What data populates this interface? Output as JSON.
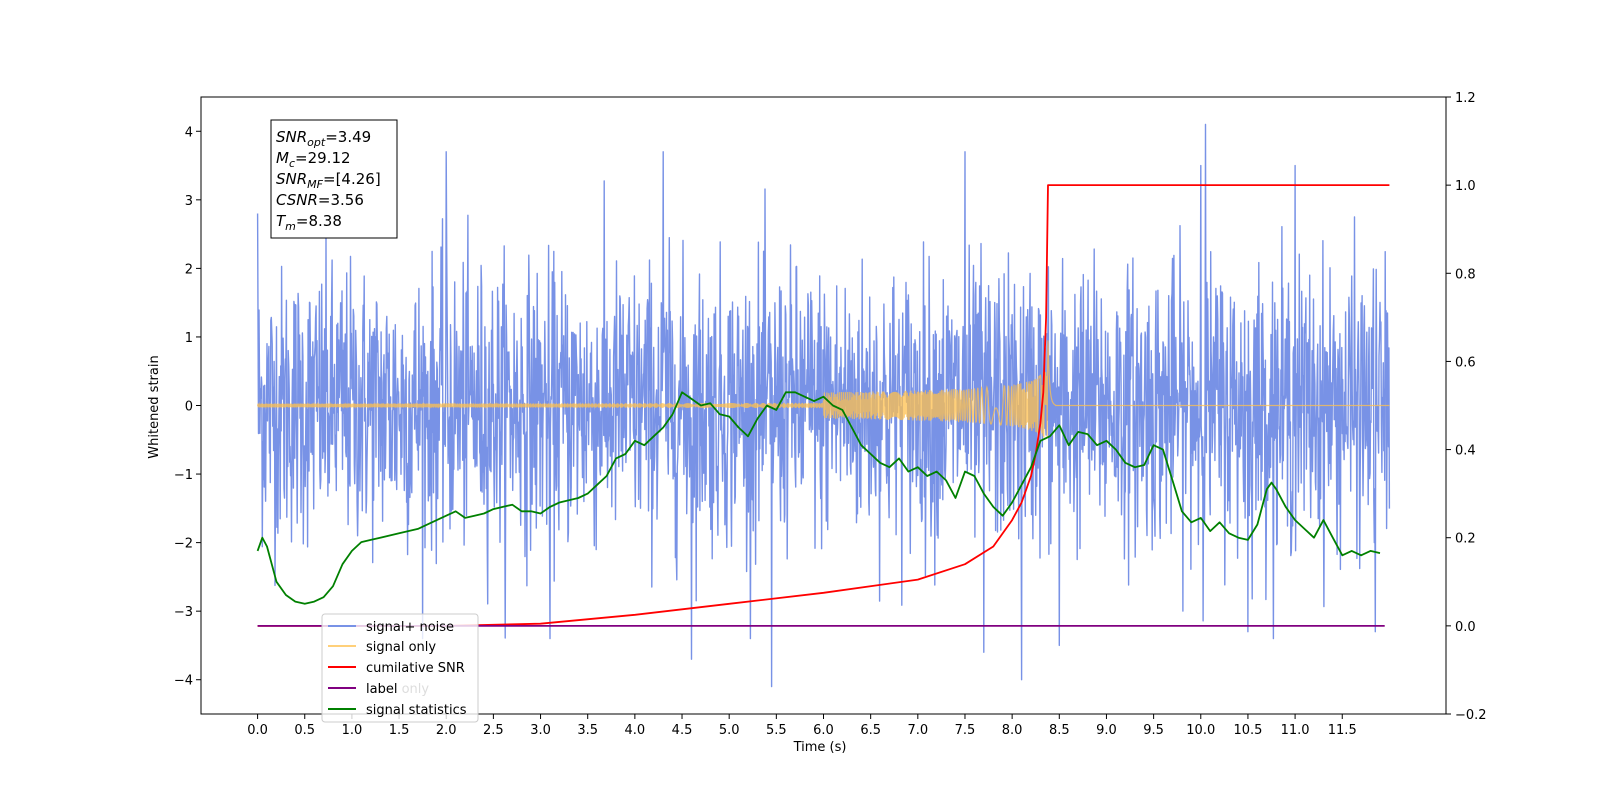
{
  "chart_data": {
    "type": "line",
    "xlabel": "Time (s)",
    "ylabel": "Whitened strain",
    "xlim": [
      -0.6,
      12.6
    ],
    "ylim": [
      -4.5,
      4.5
    ],
    "y2lim": [
      -0.2,
      1.2
    ],
    "x_ticks": [
      0.0,
      0.5,
      1.0,
      1.5,
      2.0,
      2.5,
      3.0,
      3.5,
      4.0,
      4.5,
      5.0,
      5.5,
      6.0,
      6.5,
      7.0,
      7.5,
      8.0,
      8.5,
      9.0,
      9.5,
      10.0,
      10.5,
      11.0,
      11.5
    ],
    "x_tick_labels": [
      "0.0",
      "0.5",
      "1.0",
      "1.5",
      "2.0",
      "2.5",
      "3.0",
      "3.5",
      "4.0",
      "4.5",
      "5.0",
      "5.5",
      "6.0",
      "6.5",
      "7.0",
      "7.5",
      "8.0",
      "8.5",
      "9.0",
      "9.5",
      "10.0",
      "10.5",
      "11.0",
      "11.5"
    ],
    "y_ticks": [
      -4,
      -3,
      -2,
      -1,
      0,
      1,
      2,
      3,
      4
    ],
    "y_tick_labels": [
      "−4",
      "−3",
      "−2",
      "−1",
      "0",
      "1",
      "2",
      "3",
      "4"
    ],
    "y2_ticks": [
      -0.2,
      0.0,
      0.2,
      0.4,
      0.6,
      0.8,
      1.0,
      1.2
    ],
    "y2_tick_labels": [
      "−0.2",
      "0.0",
      "0.2",
      "0.4",
      "0.6",
      "0.8",
      "1.0",
      "1.2"
    ],
    "grid": false,
    "legend_position": "lower-left",
    "stats_box": {
      "snr_opt": {
        "sym": "SNR",
        "sub": "opt",
        "value": "=3.49"
      },
      "mc": {
        "sym": "M",
        "sub": "c",
        "value": "=29.12"
      },
      "snr_mf": {
        "sym": "SNR",
        "sub": "MF",
        "value": "=[4.26]"
      },
      "csnr": {
        "sym": "CSNR",
        "sub": "",
        "value": "=3.56"
      },
      "tm": {
        "sym": "T",
        "sub": "m",
        "value": "=8.38"
      }
    },
    "series": [
      {
        "name": "signal+ noise",
        "axis": "left",
        "color": "#7892e6",
        "kind": "noise",
        "x_range": [
          0.0,
          12.0
        ],
        "std": 1.0,
        "peaks": [
          [
            0.0,
            2.8
          ],
          [
            2.0,
            3.7
          ],
          [
            3.1,
            -3.4
          ],
          [
            4.3,
            3.7
          ],
          [
            4.6,
            -3.7
          ],
          [
            5.45,
            -4.1
          ],
          [
            7.5,
            3.7
          ],
          [
            7.7,
            -3.6
          ],
          [
            8.1,
            -4.0
          ],
          [
            8.5,
            -3.5
          ],
          [
            10.05,
            4.1
          ],
          [
            10.5,
            -3.3
          ],
          [
            11.85,
            -3.3
          ],
          [
            10.0,
            3.5
          ],
          [
            11.0,
            3.5
          ]
        ]
      },
      {
        "name": "signal only",
        "axis": "left",
        "color": "#ffc04d",
        "kind": "chirp",
        "merger_time": 8.38,
        "peak_amplitude": 0.95
      },
      {
        "name": "cumilative SNR",
        "axis": "right",
        "color": "#ff0000",
        "x": [
          0.0,
          2.0,
          3.0,
          4.0,
          5.0,
          6.0,
          7.0,
          7.5,
          7.8,
          8.0,
          8.1,
          8.2,
          8.25,
          8.3,
          8.33,
          8.36,
          8.38,
          12.0
        ],
        "y": [
          0.0,
          0.0,
          0.005,
          0.025,
          0.05,
          0.075,
          0.105,
          0.14,
          0.18,
          0.24,
          0.28,
          0.34,
          0.39,
          0.46,
          0.53,
          0.7,
          1.0,
          1.0
        ]
      },
      {
        "name": "label",
        "axis": "right",
        "color": "#800080",
        "x": [
          0.0,
          11.95
        ],
        "y": [
          0.0,
          0.0
        ]
      },
      {
        "name": "label only",
        "axis": "right",
        "color": "#dddddd",
        "hidden_behind_legend": true
      },
      {
        "name": "signal statistics",
        "axis": "right",
        "color": "#008000",
        "x": [
          0.0,
          0.05,
          0.1,
          0.2,
          0.3,
          0.4,
          0.5,
          0.6,
          0.7,
          0.8,
          0.9,
          1.0,
          1.1,
          1.2,
          1.3,
          1.5,
          1.7,
          1.9,
          2.0,
          2.1,
          2.2,
          2.3,
          2.4,
          2.5,
          2.6,
          2.7,
          2.8,
          2.9,
          3.0,
          3.1,
          3.2,
          3.4,
          3.5,
          3.6,
          3.7,
          3.8,
          3.9,
          4.0,
          4.1,
          4.2,
          4.3,
          4.4,
          4.5,
          4.6,
          4.7,
          4.8,
          4.9,
          5.0,
          5.1,
          5.2,
          5.3,
          5.4,
          5.5,
          5.6,
          5.7,
          5.8,
          5.9,
          6.0,
          6.1,
          6.2,
          6.3,
          6.4,
          6.5,
          6.6,
          6.7,
          6.8,
          6.9,
          7.0,
          7.1,
          7.2,
          7.3,
          7.4,
          7.5,
          7.6,
          7.7,
          7.8,
          7.9,
          8.0,
          8.1,
          8.2,
          8.3,
          8.4,
          8.5,
          8.6,
          8.7,
          8.8,
          8.9,
          9.0,
          9.1,
          9.2,
          9.3,
          9.4,
          9.5,
          9.6,
          9.7,
          9.8,
          9.9,
          10.0,
          10.1,
          10.2,
          10.3,
          10.4,
          10.5,
          10.6,
          10.7,
          10.75,
          10.8,
          10.9,
          11.0,
          11.1,
          11.2,
          11.3,
          11.4,
          11.5,
          11.6,
          11.7,
          11.8,
          11.9
        ],
        "y": [
          0.17,
          0.2,
          0.18,
          0.1,
          0.07,
          0.055,
          0.05,
          0.055,
          0.065,
          0.09,
          0.14,
          0.17,
          0.19,
          0.195,
          0.2,
          0.21,
          0.22,
          0.24,
          0.25,
          0.26,
          0.245,
          0.25,
          0.255,
          0.265,
          0.27,
          0.275,
          0.26,
          0.26,
          0.255,
          0.27,
          0.28,
          0.29,
          0.3,
          0.32,
          0.34,
          0.38,
          0.39,
          0.42,
          0.41,
          0.43,
          0.45,
          0.48,
          0.53,
          0.515,
          0.5,
          0.505,
          0.48,
          0.475,
          0.45,
          0.43,
          0.47,
          0.5,
          0.49,
          0.53,
          0.53,
          0.52,
          0.51,
          0.52,
          0.5,
          0.49,
          0.45,
          0.41,
          0.39,
          0.37,
          0.36,
          0.38,
          0.35,
          0.36,
          0.34,
          0.35,
          0.33,
          0.29,
          0.35,
          0.34,
          0.3,
          0.27,
          0.25,
          0.28,
          0.32,
          0.36,
          0.42,
          0.43,
          0.455,
          0.41,
          0.44,
          0.435,
          0.41,
          0.42,
          0.4,
          0.37,
          0.36,
          0.365,
          0.41,
          0.4,
          0.33,
          0.26,
          0.235,
          0.245,
          0.215,
          0.235,
          0.21,
          0.2,
          0.195,
          0.23,
          0.31,
          0.325,
          0.31,
          0.27,
          0.24,
          0.22,
          0.2,
          0.24,
          0.2,
          0.16,
          0.17,
          0.16,
          0.17,
          0.165
        ]
      }
    ]
  }
}
